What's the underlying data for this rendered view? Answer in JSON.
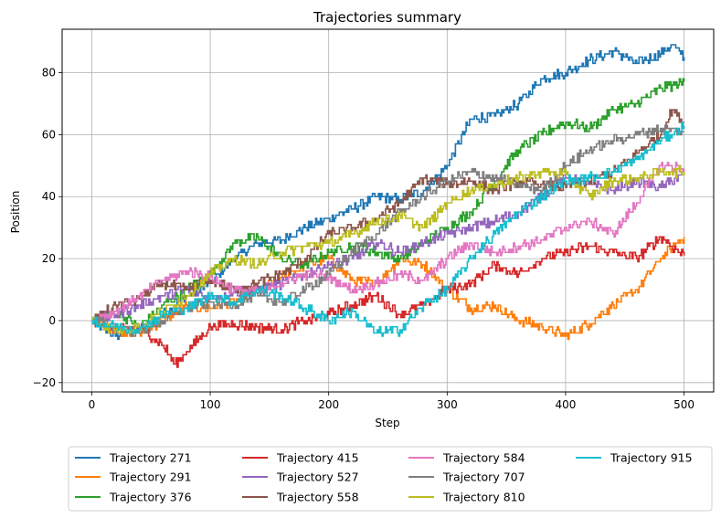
{
  "chart_data": {
    "type": "line",
    "title": "Trajectories summary",
    "xlabel": "Step",
    "ylabel": "Position",
    "xlim": [
      -25,
      525
    ],
    "ylim": [
      -23,
      94
    ],
    "xticks": [
      0,
      100,
      200,
      300,
      400,
      500
    ],
    "yticks": [
      -20,
      0,
      20,
      40,
      60,
      80
    ],
    "grid": true,
    "legend_position": "bottom-center",
    "legend_columns": 4,
    "series": [
      {
        "name": "Trajectory 271",
        "color": "#1f77b4",
        "points": [
          [
            0,
            0
          ],
          [
            20,
            -5
          ],
          [
            40,
            -3
          ],
          [
            60,
            2
          ],
          [
            80,
            8
          ],
          [
            100,
            12
          ],
          [
            120,
            20
          ],
          [
            140,
            25
          ],
          [
            160,
            26
          ],
          [
            180,
            30
          ],
          [
            200,
            33
          ],
          [
            220,
            36
          ],
          [
            240,
            40
          ],
          [
            260,
            39
          ],
          [
            280,
            42
          ],
          [
            300,
            50
          ],
          [
            320,
            65
          ],
          [
            340,
            66
          ],
          [
            360,
            70
          ],
          [
            380,
            78
          ],
          [
            400,
            80
          ],
          [
            420,
            84
          ],
          [
            440,
            87
          ],
          [
            460,
            83
          ],
          [
            480,
            86
          ],
          [
            490,
            89
          ],
          [
            500,
            85
          ]
        ]
      },
      {
        "name": "Trajectory 291",
        "color": "#ff7f0e",
        "points": [
          [
            0,
            0
          ],
          [
            20,
            -3
          ],
          [
            40,
            -4
          ],
          [
            60,
            0
          ],
          [
            80,
            5
          ],
          [
            100,
            4
          ],
          [
            120,
            6
          ],
          [
            140,
            10
          ],
          [
            160,
            14
          ],
          [
            180,
            18
          ],
          [
            200,
            20
          ],
          [
            220,
            13
          ],
          [
            240,
            12
          ],
          [
            260,
            20
          ],
          [
            280,
            18
          ],
          [
            300,
            10
          ],
          [
            320,
            4
          ],
          [
            340,
            5
          ],
          [
            360,
            0
          ],
          [
            380,
            -2
          ],
          [
            400,
            -5
          ],
          [
            420,
            -1
          ],
          [
            440,
            5
          ],
          [
            460,
            10
          ],
          [
            480,
            20
          ],
          [
            500,
            27
          ]
        ]
      },
      {
        "name": "Trajectory 376",
        "color": "#2ca02c",
        "points": [
          [
            0,
            0
          ],
          [
            20,
            3
          ],
          [
            40,
            -2
          ],
          [
            60,
            5
          ],
          [
            80,
            10
          ],
          [
            100,
            15
          ],
          [
            120,
            25
          ],
          [
            140,
            27
          ],
          [
            160,
            20
          ],
          [
            180,
            18
          ],
          [
            200,
            22
          ],
          [
            220,
            24
          ],
          [
            240,
            22
          ],
          [
            260,
            20
          ],
          [
            280,
            25
          ],
          [
            300,
            30
          ],
          [
            320,
            35
          ],
          [
            340,
            45
          ],
          [
            360,
            55
          ],
          [
            380,
            60
          ],
          [
            400,
            64
          ],
          [
            420,
            62
          ],
          [
            440,
            68
          ],
          [
            460,
            70
          ],
          [
            480,
            75
          ],
          [
            500,
            77
          ]
        ]
      },
      {
        "name": "Trajectory 415",
        "color": "#d62728",
        "points": [
          [
            0,
            0
          ],
          [
            20,
            -3
          ],
          [
            40,
            -2
          ],
          [
            60,
            -8
          ],
          [
            70,
            -14
          ],
          [
            80,
            -10
          ],
          [
            100,
            -2
          ],
          [
            120,
            -1
          ],
          [
            140,
            -2
          ],
          [
            160,
            -3
          ],
          [
            180,
            0
          ],
          [
            200,
            2
          ],
          [
            220,
            5
          ],
          [
            240,
            8
          ],
          [
            260,
            2
          ],
          [
            280,
            5
          ],
          [
            300,
            10
          ],
          [
            320,
            12
          ],
          [
            340,
            18
          ],
          [
            360,
            15
          ],
          [
            380,
            20
          ],
          [
            400,
            22
          ],
          [
            420,
            24
          ],
          [
            440,
            22
          ],
          [
            460,
            20
          ],
          [
            480,
            27
          ],
          [
            500,
            21
          ]
        ]
      },
      {
        "name": "Trajectory 527",
        "color": "#9467bd",
        "points": [
          [
            0,
            0
          ],
          [
            20,
            2
          ],
          [
            40,
            5
          ],
          [
            60,
            8
          ],
          [
            80,
            10
          ],
          [
            100,
            7
          ],
          [
            120,
            9
          ],
          [
            140,
            10
          ],
          [
            160,
            12
          ],
          [
            180,
            15
          ],
          [
            200,
            18
          ],
          [
            220,
            20
          ],
          [
            240,
            25
          ],
          [
            260,
            22
          ],
          [
            280,
            25
          ],
          [
            300,
            28
          ],
          [
            320,
            30
          ],
          [
            340,
            32
          ],
          [
            360,
            35
          ],
          [
            380,
            40
          ],
          [
            400,
            46
          ],
          [
            420,
            44
          ],
          [
            440,
            42
          ],
          [
            460,
            45
          ],
          [
            480,
            43
          ],
          [
            500,
            47
          ]
        ]
      },
      {
        "name": "Trajectory 558",
        "color": "#8c564b",
        "points": [
          [
            0,
            0
          ],
          [
            20,
            5
          ],
          [
            40,
            7
          ],
          [
            60,
            12
          ],
          [
            80,
            10
          ],
          [
            100,
            13
          ],
          [
            120,
            10
          ],
          [
            140,
            12
          ],
          [
            160,
            15
          ],
          [
            180,
            20
          ],
          [
            200,
            28
          ],
          [
            220,
            30
          ],
          [
            240,
            33
          ],
          [
            260,
            38
          ],
          [
            280,
            46
          ],
          [
            300,
            44
          ],
          [
            320,
            45
          ],
          [
            340,
            42
          ],
          [
            360,
            45
          ],
          [
            380,
            44
          ],
          [
            400,
            43
          ],
          [
            420,
            45
          ],
          [
            440,
            48
          ],
          [
            460,
            54
          ],
          [
            480,
            60
          ],
          [
            490,
            68
          ],
          [
            500,
            64
          ]
        ]
      },
      {
        "name": "Trajectory 584",
        "color": "#e377c2",
        "points": [
          [
            0,
            0
          ],
          [
            20,
            3
          ],
          [
            40,
            8
          ],
          [
            60,
            13
          ],
          [
            80,
            16
          ],
          [
            100,
            14
          ],
          [
            120,
            10
          ],
          [
            140,
            9
          ],
          [
            160,
            12
          ],
          [
            180,
            15
          ],
          [
            200,
            14
          ],
          [
            220,
            10
          ],
          [
            240,
            12
          ],
          [
            260,
            15
          ],
          [
            280,
            13
          ],
          [
            300,
            20
          ],
          [
            320,
            25
          ],
          [
            340,
            22
          ],
          [
            360,
            24
          ],
          [
            380,
            26
          ],
          [
            400,
            30
          ],
          [
            420,
            32
          ],
          [
            440,
            28
          ],
          [
            460,
            38
          ],
          [
            480,
            50
          ],
          [
            500,
            49
          ]
        ]
      },
      {
        "name": "Trajectory 707",
        "color": "#7f7f7f",
        "points": [
          [
            0,
            0
          ],
          [
            20,
            -2
          ],
          [
            40,
            -4
          ],
          [
            60,
            0
          ],
          [
            80,
            4
          ],
          [
            100,
            6
          ],
          [
            120,
            5
          ],
          [
            140,
            8
          ],
          [
            160,
            6
          ],
          [
            180,
            10
          ],
          [
            200,
            15
          ],
          [
            220,
            22
          ],
          [
            240,
            28
          ],
          [
            260,
            35
          ],
          [
            280,
            40
          ],
          [
            300,
            45
          ],
          [
            320,
            48
          ],
          [
            340,
            46
          ],
          [
            360,
            44
          ],
          [
            380,
            42
          ],
          [
            400,
            50
          ],
          [
            420,
            55
          ],
          [
            440,
            58
          ],
          [
            460,
            60
          ],
          [
            480,
            62
          ],
          [
            500,
            61
          ]
        ]
      },
      {
        "name": "Trajectory 810",
        "color": "#bcbd22",
        "points": [
          [
            0,
            0
          ],
          [
            20,
            -3
          ],
          [
            40,
            -2
          ],
          [
            60,
            3
          ],
          [
            80,
            8
          ],
          [
            100,
            15
          ],
          [
            120,
            20
          ],
          [
            140,
            18
          ],
          [
            160,
            22
          ],
          [
            180,
            24
          ],
          [
            200,
            25
          ],
          [
            220,
            28
          ],
          [
            240,
            32
          ],
          [
            260,
            34
          ],
          [
            280,
            30
          ],
          [
            300,
            38
          ],
          [
            320,
            42
          ],
          [
            340,
            44
          ],
          [
            360,
            46
          ],
          [
            380,
            48
          ],
          [
            400,
            47
          ],
          [
            420,
            40
          ],
          [
            440,
            45
          ],
          [
            460,
            46
          ],
          [
            480,
            48
          ],
          [
            500,
            48
          ]
        ]
      },
      {
        "name": "Trajectory 915",
        "color": "#17becf",
        "points": [
          [
            0,
            0
          ],
          [
            20,
            -2
          ],
          [
            40,
            -3
          ],
          [
            60,
            2
          ],
          [
            80,
            4
          ],
          [
            100,
            8
          ],
          [
            120,
            6
          ],
          [
            140,
            10
          ],
          [
            160,
            8
          ],
          [
            180,
            4
          ],
          [
            200,
            0
          ],
          [
            220,
            3
          ],
          [
            240,
            -4
          ],
          [
            260,
            -3
          ],
          [
            280,
            5
          ],
          [
            300,
            10
          ],
          [
            320,
            20
          ],
          [
            340,
            28
          ],
          [
            360,
            35
          ],
          [
            380,
            40
          ],
          [
            400,
            45
          ],
          [
            420,
            46
          ],
          [
            440,
            48
          ],
          [
            460,
            52
          ],
          [
            480,
            58
          ],
          [
            500,
            63
          ]
        ]
      }
    ]
  }
}
